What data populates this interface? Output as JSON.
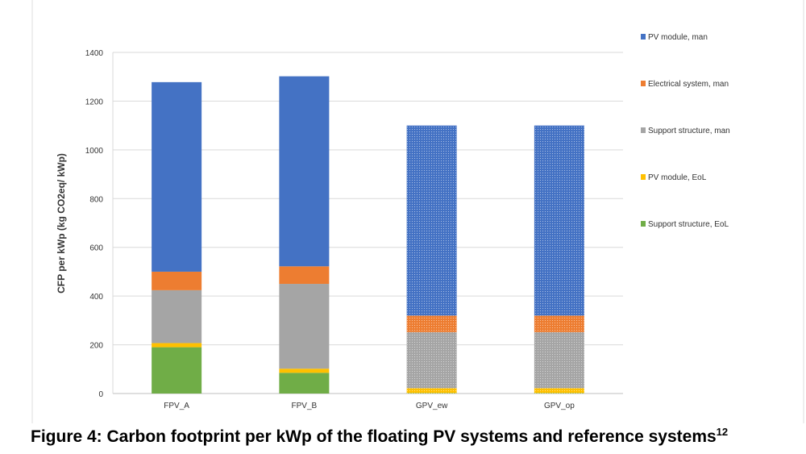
{
  "chart_data": {
    "type": "bar",
    "stacked": true,
    "title": "",
    "xlabel": "",
    "ylabel": "CFP per kWp (kg CO2eq/ kWp)",
    "ylim": [
      0,
      1400
    ],
    "yticks": [
      0,
      200,
      400,
      600,
      800,
      1000,
      1200,
      1400
    ],
    "grid": true,
    "legend_position": "right",
    "categories": [
      "FPV_A",
      "FPV_B",
      "GPV_ew",
      "GPV_op"
    ],
    "patterned_categories": [
      "GPV_ew",
      "GPV_op"
    ],
    "series": [
      {
        "name": "Support structure, EoL",
        "color": "#70AD47",
        "values": [
          190,
          85,
          2,
          2
        ]
      },
      {
        "name": "PV module, EoL",
        "color": "#FFC000",
        "values": [
          17,
          17,
          20,
          20
        ]
      },
      {
        "name": "Support structure, man",
        "color": "#A5A5A5",
        "values": [
          217,
          348,
          230,
          230
        ]
      },
      {
        "name": "Electrical system, man",
        "color": "#ED7D31",
        "values": [
          76,
          72,
          68,
          68
        ]
      },
      {
        "name": "PV module, man",
        "color": "#4472C4",
        "values": [
          778,
          780,
          780,
          780
        ]
      }
    ],
    "legend_order": [
      "PV module, man",
      "Electrical system, man",
      "Support structure, man",
      "PV module, EoL",
      "Support structure, EoL"
    ]
  },
  "caption": {
    "text": "Figure 4:  Carbon footprint per kWp of the floating PV systems and reference systems",
    "footnote": "12"
  }
}
